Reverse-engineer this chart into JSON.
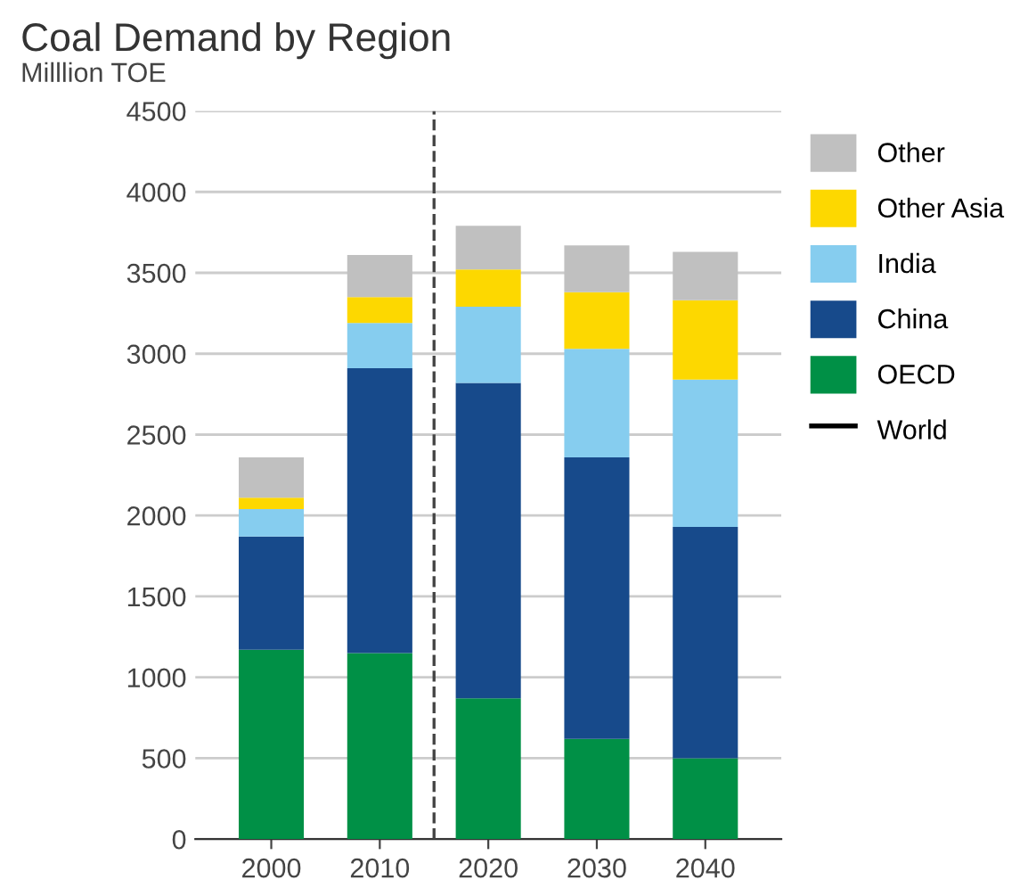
{
  "chart_data": {
    "type": "bar",
    "stacked": true,
    "title": "Coal Demand by Region",
    "ylabel": "Milllion TOE",
    "x": [
      2000,
      2010,
      2020,
      2030,
      2040
    ],
    "xlim": [
      1993,
      2047
    ],
    "xticks": [
      2000,
      2010,
      2020,
      2030,
      2040
    ],
    "ylim": [
      0,
      4500
    ],
    "yticks": [
      0,
      500,
      1000,
      1500,
      2000,
      2500,
      3000,
      3500,
      4000,
      4500
    ],
    "grid": "y",
    "legend": "right",
    "ref_lines": [
      {
        "axis": "x",
        "value": 2015,
        "color": "#444444",
        "line_style": "dashed"
      }
    ],
    "series": [
      {
        "name": "OECD",
        "color": "#009046",
        "values": [
          1170,
          1150,
          870,
          620,
          500
        ]
      },
      {
        "name": "China",
        "color": "#174a8b",
        "values": [
          700,
          1760,
          1950,
          1740,
          1430
        ]
      },
      {
        "name": "India",
        "color": "#86cdef",
        "values": [
          170,
          280,
          470,
          670,
          910
        ]
      },
      {
        "name": "Other Asia",
        "color": "#fdd800",
        "values": [
          70,
          160,
          230,
          350,
          490
        ]
      },
      {
        "name": "Other",
        "color": "#c0c0c0",
        "values": [
          250,
          260,
          270,
          290,
          300
        ]
      },
      {
        "name": "World",
        "type": "line",
        "color": "#000000",
        "values": [
          null,
          null,
          null,
          null,
          null
        ]
      }
    ]
  }
}
